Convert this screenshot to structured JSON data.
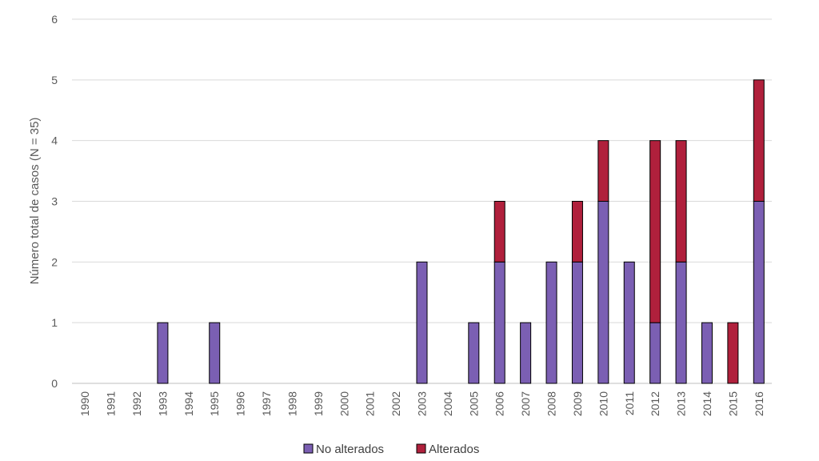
{
  "chart_data": {
    "type": "bar",
    "stacked": true,
    "ylabel": "Número total de casos (N = 35)",
    "xlabel": "",
    "ylim": [
      0,
      6
    ],
    "yticks": [
      0,
      1,
      2,
      3,
      4,
      5,
      6
    ],
    "grid": "horizontal",
    "legend_position": "bottom-center",
    "categories": [
      "1990",
      "1991",
      "1992",
      "1993",
      "1994",
      "1995",
      "1996",
      "1997",
      "1998",
      "1999",
      "2000",
      "2001",
      "2002",
      "2003",
      "2004",
      "2005",
      "2006",
      "2007",
      "2008",
      "2009",
      "2010",
      "2011",
      "2012",
      "2013",
      "2014",
      "2015",
      "2016"
    ],
    "series": [
      {
        "name": "No alterados",
        "color": "#7b5fb3",
        "values": [
          0,
          0,
          0,
          1,
          0,
          1,
          0,
          0,
          0,
          0,
          0,
          0,
          0,
          2,
          0,
          1,
          2,
          1,
          2,
          2,
          3,
          2,
          1,
          2,
          1,
          0,
          3
        ]
      },
      {
        "name": "Alterados",
        "color": "#b0203c",
        "values": [
          0,
          0,
          0,
          0,
          0,
          0,
          0,
          0,
          0,
          0,
          0,
          0,
          0,
          0,
          0,
          0,
          1,
          0,
          0,
          1,
          1,
          0,
          3,
          2,
          0,
          1,
          2
        ]
      }
    ]
  }
}
